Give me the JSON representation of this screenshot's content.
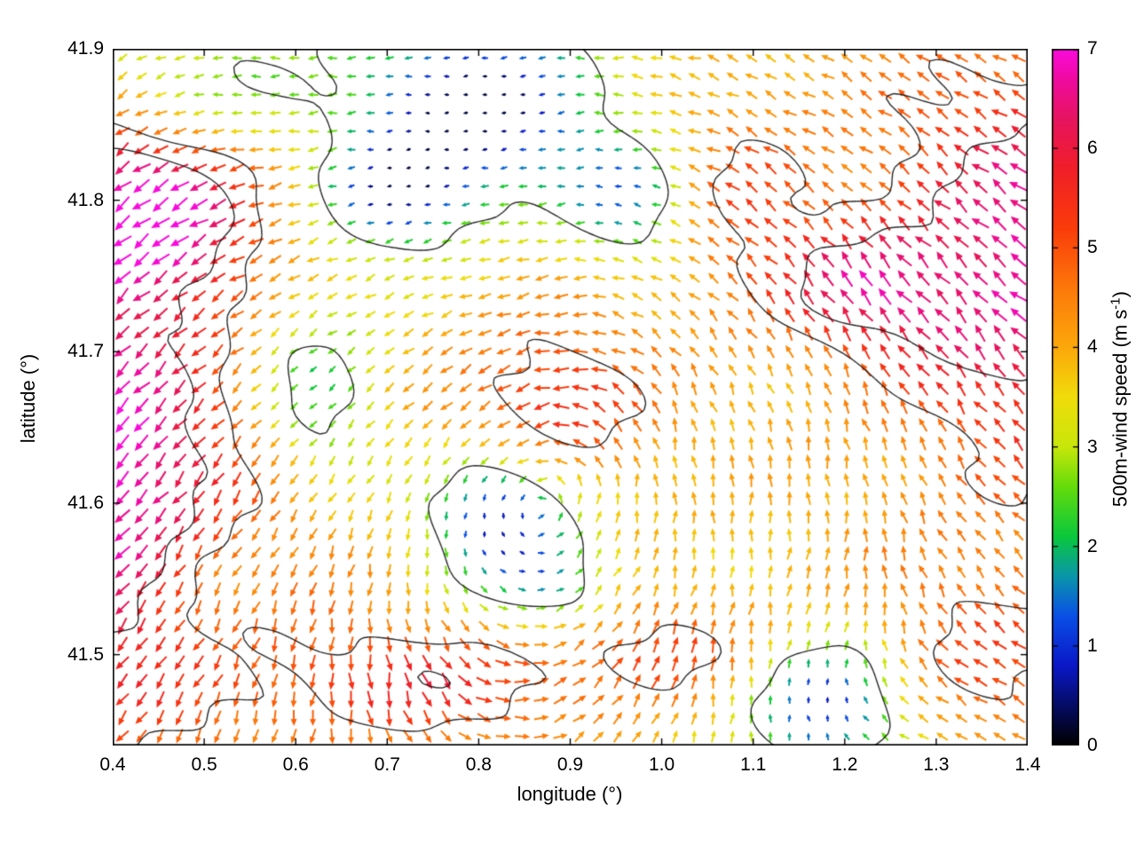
{
  "chart_data": {
    "type": "quiver",
    "title": "",
    "xlabel": "longitude (°)",
    "ylabel": "latitude (°)",
    "xlim": [
      0.4,
      1.4
    ],
    "ylim": [
      41.44,
      41.9
    ],
    "grid": false,
    "x_ticks": [
      {
        "v": 0.4,
        "label": "0.4"
      },
      {
        "v": 0.5,
        "label": "0.5"
      },
      {
        "v": 0.6,
        "label": "0.6"
      },
      {
        "v": 0.7,
        "label": "0.7"
      },
      {
        "v": 0.8,
        "label": "0.8"
      },
      {
        "v": 0.9,
        "label": "0.9"
      },
      {
        "v": 1.0,
        "label": "1.0"
      },
      {
        "v": 1.1,
        "label": "1.1"
      },
      {
        "v": 1.2,
        "label": "1.2"
      },
      {
        "v": 1.3,
        "label": "1.3"
      },
      {
        "v": 1.4,
        "label": "1.4"
      }
    ],
    "y_ticks": [
      {
        "v": 41.5,
        "label": "41.5"
      },
      {
        "v": 41.6,
        "label": "41.6"
      },
      {
        "v": 41.7,
        "label": "41.7"
      },
      {
        "v": 41.8,
        "label": "41.8"
      },
      {
        "v": 41.9,
        "label": "41.9"
      }
    ],
    "colorbar": {
      "label_prefix": "500m-wind speed (m s",
      "label_sup": "-1",
      "label_suffix": ")",
      "min": 0,
      "max": 7,
      "ticks": [
        {
          "v": 0,
          "label": "0"
        },
        {
          "v": 1,
          "label": "1"
        },
        {
          "v": 2,
          "label": "2"
        },
        {
          "v": 3,
          "label": "3"
        },
        {
          "v": 4,
          "label": "4"
        },
        {
          "v": 5,
          "label": "5"
        },
        {
          "v": 6,
          "label": "6"
        },
        {
          "v": 7,
          "label": "7"
        }
      ]
    },
    "colormap": [
      [
        0.0,
        "#000000"
      ],
      [
        0.8,
        "#0a18c8"
      ],
      [
        1.3,
        "#0a50e6"
      ],
      [
        1.7,
        "#0a96aa"
      ],
      [
        2.1,
        "#0ac83c"
      ],
      [
        2.6,
        "#64dc0a"
      ],
      [
        3.0,
        "#c8e60a"
      ],
      [
        3.5,
        "#f0dc0a"
      ],
      [
        4.0,
        "#fca80a"
      ],
      [
        4.6,
        "#fc780a"
      ],
      [
        5.2,
        "#fa3c0a"
      ],
      [
        5.8,
        "#f01e28"
      ],
      [
        6.3,
        "#e6145f"
      ],
      [
        6.7,
        "#f00aa0"
      ],
      [
        7.0,
        "#fa0adc"
      ]
    ],
    "vector_grid": {
      "cols": 48,
      "rows": 38
    },
    "speed_field": {
      "base": 3.8,
      "clamp": [
        0.25,
        7.0
      ],
      "features": [
        {
          "cx": 0.36,
          "cy": 41.62,
          "sx": 0.15,
          "sy": 0.12,
          "amp": 3.4
        },
        {
          "cx": 0.44,
          "cy": 41.8,
          "sx": 0.09,
          "sy": 0.045,
          "amp": 2.6
        },
        {
          "cx": 0.5,
          "cy": 41.875,
          "sx": 0.1,
          "sy": 0.035,
          "amp": -1.6
        },
        {
          "cx": 0.8,
          "cy": 41.862,
          "sx": 0.1,
          "sy": 0.042,
          "amp": -3.6
        },
        {
          "cx": 0.71,
          "cy": 41.803,
          "sx": 0.055,
          "sy": 0.026,
          "amp": -2.9
        },
        {
          "cx": 0.97,
          "cy": 41.8,
          "sx": 0.05,
          "sy": 0.028,
          "amp": -2.4
        },
        {
          "cx": 0.63,
          "cy": 41.66,
          "sx": 0.05,
          "sy": 0.035,
          "amp": -1.7
        },
        {
          "cx": 0.82,
          "cy": 41.595,
          "sx": 0.055,
          "sy": 0.03,
          "amp": -3.4
        },
        {
          "cx": 0.88,
          "cy": 41.545,
          "sx": 0.05,
          "sy": 0.022,
          "amp": -2.0
        },
        {
          "cx": 1.18,
          "cy": 41.465,
          "sx": 0.06,
          "sy": 0.032,
          "amp": -3.2
        },
        {
          "cx": 0.88,
          "cy": 41.665,
          "sx": 0.075,
          "sy": 0.038,
          "amp": 1.9
        },
        {
          "cx": 0.74,
          "cy": 41.48,
          "sx": 0.13,
          "sy": 0.028,
          "amp": 1.7
        },
        {
          "cx": 1.0,
          "cy": 41.505,
          "sx": 0.09,
          "sy": 0.024,
          "amp": 1.2
        },
        {
          "cx": 1.42,
          "cy": 41.76,
          "sx": 0.13,
          "sy": 0.1,
          "amp": 3.0
        },
        {
          "cx": 1.22,
          "cy": 41.74,
          "sx": 0.07,
          "sy": 0.03,
          "amp": 1.8
        },
        {
          "cx": 1.36,
          "cy": 41.5,
          "sx": 0.1,
          "sy": 0.05,
          "amp": 1.2
        },
        {
          "cx": 1.08,
          "cy": 41.8,
          "sx": 0.07,
          "sy": 0.05,
          "amp": 1.3
        },
        {
          "cx": 0.6,
          "cy": 41.71,
          "sx": 0.06,
          "sy": 0.04,
          "amp": -1.2
        },
        {
          "cx": 0.52,
          "cy": 41.56,
          "sx": 0.05,
          "sy": 0.04,
          "amp": -0.8
        }
      ]
    },
    "flow_field": {
      "background": [
        -1.1,
        0.0
      ],
      "vortices": [
        {
          "cx": 0.93,
          "cy": 41.655,
          "s": 0.5,
          "core": 0.018
        },
        {
          "cx": 0.8,
          "cy": 41.85,
          "s": -0.12,
          "core": 0.01
        },
        {
          "cx": 0.82,
          "cy": 41.6,
          "s": 0.18,
          "core": 0.008
        },
        {
          "cx": 1.18,
          "cy": 41.47,
          "s": -0.15,
          "core": 0.008
        },
        {
          "cx": 0.45,
          "cy": 41.9,
          "s": 0.1,
          "core": 0.012
        }
      ],
      "noise_deg": 14
    },
    "contours": {
      "levels": [
        2.6,
        4.9,
        5.9
      ],
      "color": "#1b1b1b",
      "width": 1.4
    }
  }
}
